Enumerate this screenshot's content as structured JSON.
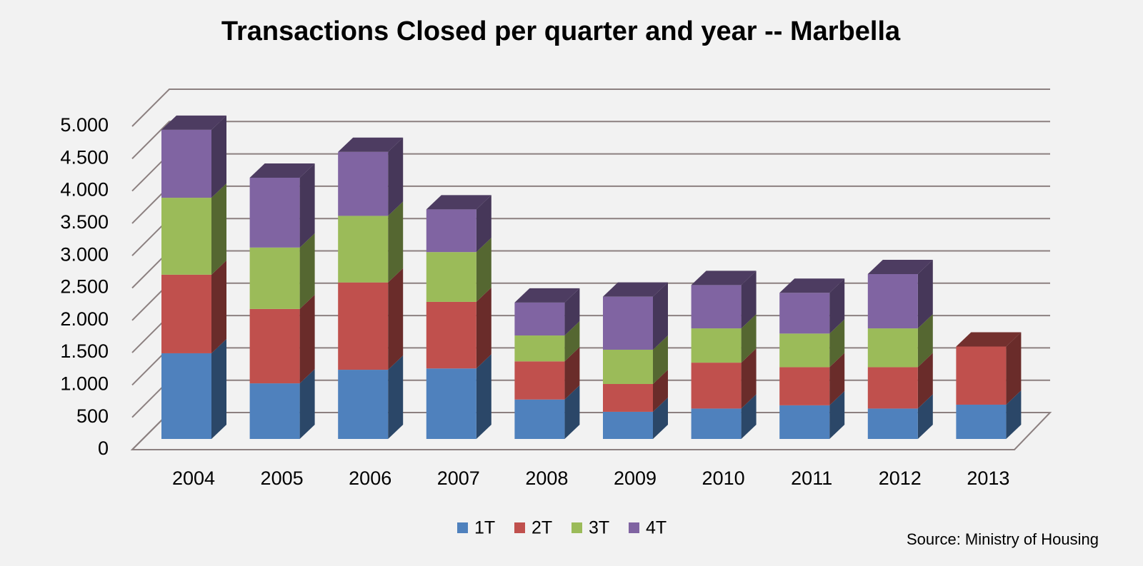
{
  "chart_data": {
    "type": "bar3d_stacked",
    "title": "Transactions Closed per quarter and year -- Marbella",
    "source": "Source: Ministry of Housing",
    "categories": [
      "2004",
      "2005",
      "2006",
      "2007",
      "2008",
      "2009",
      "2010",
      "2011",
      "2012",
      "2013"
    ],
    "series": [
      {
        "name": "1T",
        "color": "#4f81bd",
        "values": [
          1325,
          860,
          1070,
          1090,
          610,
          420,
          470,
          520,
          470,
          530
        ]
      },
      {
        "name": "2T",
        "color": "#c0504d",
        "values": [
          1215,
          1150,
          1350,
          1030,
          590,
          430,
          710,
          590,
          640,
          900
        ]
      },
      {
        "name": "3T",
        "color": "#9bbb59",
        "values": [
          1190,
          950,
          1030,
          770,
          400,
          530,
          530,
          520,
          600,
          null
        ]
      },
      {
        "name": "4T",
        "color": "#8064a2",
        "values": [
          1050,
          1080,
          990,
          660,
          510,
          820,
          670,
          630,
          840,
          null
        ]
      }
    ],
    "ylim": [
      0,
      5000
    ],
    "yticks": [
      0,
      500,
      {
        "value": 1000,
        "label": "1.000"
      },
      {
        "value": 1500,
        "label": "1.500"
      },
      {
        "value": 2000,
        "label": "2.000"
      },
      {
        "value": 2500,
        "label": "2.500"
      },
      {
        "value": 3000,
        "label": "3.000"
      },
      {
        "value": 3500,
        "label": "3.500"
      },
      {
        "value": 4000,
        "label": "4.000"
      },
      {
        "value": 4500,
        "label": "4.500"
      },
      {
        "value": 5000,
        "label": "5.000"
      }
    ],
    "grid": true,
    "stacked": true,
    "legend": "bottom"
  }
}
